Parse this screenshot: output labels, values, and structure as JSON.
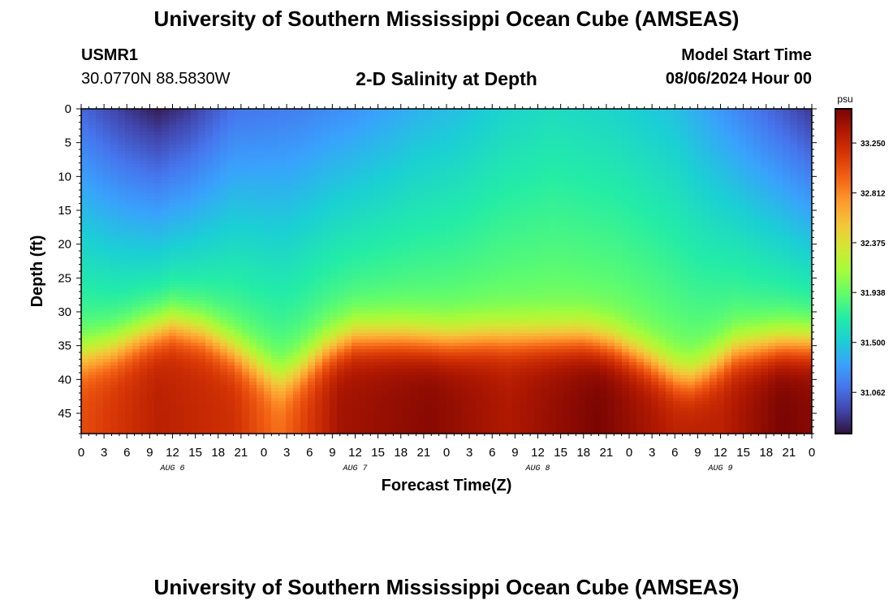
{
  "header": {
    "title": "University of Southern Mississippi Ocean Cube (AMSEAS)",
    "station_id": "USMR1",
    "station_coords": "30.0770N  88.5830W",
    "plot_title": "2-D Salinity at Depth",
    "model_start_label": "Model Start Time",
    "model_start_value": "08/06/2024 Hour 00",
    "footer_title": "University of Southern Mississippi Ocean Cube (AMSEAS)"
  },
  "chart_data": {
    "type": "heatmap",
    "title": "2-D Salinity at Depth",
    "xlabel": "Forecast Time(Z)",
    "ylabel": "Depth (ft)",
    "x_hours_range": [
      0,
      96
    ],
    "x_tick_labels": [
      "0",
      "3",
      "6",
      "9",
      "12",
      "15",
      "18",
      "21",
      "0",
      "3",
      "6",
      "9",
      "12",
      "15",
      "18",
      "21",
      "0",
      "3",
      "6",
      "9",
      "12",
      "15",
      "18",
      "21",
      "0",
      "3",
      "6",
      "9",
      "12",
      "15",
      "18",
      "21",
      "0"
    ],
    "day_labels": [
      {
        "label": "AUG 6",
        "hour": 12
      },
      {
        "label": "AUG 7",
        "hour": 36
      },
      {
        "label": "AUG 8",
        "hour": 60
      },
      {
        "label": "AUG 9",
        "hour": 84
      }
    ],
    "ylim": [
      0,
      48
    ],
    "y_ticks": [
      0,
      5,
      10,
      15,
      20,
      25,
      30,
      35,
      40,
      45
    ],
    "y_inverted": true,
    "colorbar": {
      "unit": "psu",
      "range": [
        30.7,
        33.55
      ],
      "tick_values": [
        31.062,
        31.5,
        31.938,
        32.375,
        32.812,
        33.25
      ],
      "tick_labels": [
        "31.062",
        "31.500",
        "31.938",
        "32.375",
        "32.812",
        "33.250"
      ],
      "colors": [
        "#30123b",
        "#4145ab",
        "#4675ed",
        "#39a2fc",
        "#1bcfd4",
        "#24eca6",
        "#61fc6c",
        "#a4fc3b",
        "#d1e834",
        "#f3c63a",
        "#fe9b2d",
        "#f36315",
        "#d93806",
        "#b11901",
        "#7a0403"
      ]
    },
    "surface_salinity_by_hour": [
      [
        0,
        31.05
      ],
      [
        6,
        30.85
      ],
      [
        10,
        30.75
      ],
      [
        14,
        30.85
      ],
      [
        20,
        31.1
      ],
      [
        28,
        31.15
      ],
      [
        36,
        31.25
      ],
      [
        44,
        31.38
      ],
      [
        50,
        31.45
      ],
      [
        56,
        31.55
      ],
      [
        62,
        31.6
      ],
      [
        70,
        31.55
      ],
      [
        78,
        31.45
      ],
      [
        86,
        31.2
      ],
      [
        92,
        31.0
      ],
      [
        96,
        30.85
      ]
    ],
    "halocline_depth_ft_by_hour": [
      [
        0,
        37
      ],
      [
        4,
        36
      ],
      [
        8,
        34
      ],
      [
        12,
        32.5
      ],
      [
        16,
        33.5
      ],
      [
        20,
        36
      ],
      [
        24,
        39
      ],
      [
        26,
        40.5
      ],
      [
        28,
        39.5
      ],
      [
        32,
        36
      ],
      [
        36,
        34
      ],
      [
        42,
        34
      ],
      [
        48,
        34.5
      ],
      [
        54,
        34
      ],
      [
        60,
        34
      ],
      [
        66,
        34
      ],
      [
        70,
        35
      ],
      [
        74,
        37
      ],
      [
        78,
        39.5
      ],
      [
        80,
        40
      ],
      [
        82,
        39
      ],
      [
        86,
        36
      ],
      [
        92,
        35
      ],
      [
        96,
        35
      ]
    ],
    "bottom_salinity_by_hour": [
      [
        0,
        33.05
      ],
      [
        10,
        33.3
      ],
      [
        20,
        33.2
      ],
      [
        26,
        32.9
      ],
      [
        34,
        33.4
      ],
      [
        46,
        33.5
      ],
      [
        56,
        33.35
      ],
      [
        68,
        33.55
      ],
      [
        78,
        33.3
      ],
      [
        84,
        33.3
      ],
      [
        92,
        33.55
      ],
      [
        96,
        33.5
      ]
    ]
  }
}
